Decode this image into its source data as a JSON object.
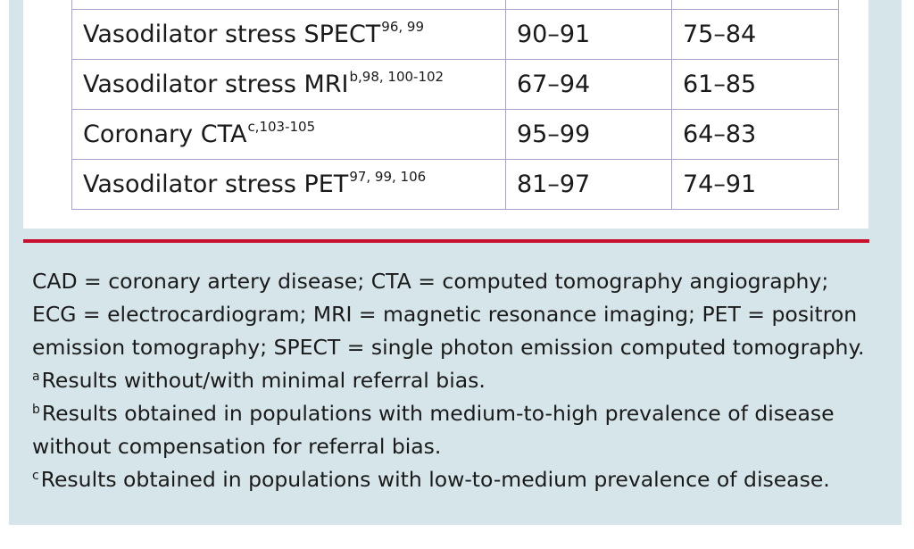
{
  "table": {
    "partial_header_row": [
      "",
      "",
      ""
    ],
    "rows": [
      {
        "test": "Vasodilator stress SPECT",
        "refs": "96, 99",
        "sensitivity": "90–91",
        "specificity": "75–84"
      },
      {
        "test": "Vasodilator stress MRI",
        "refs": "b,98, 100-102",
        "sensitivity": "67–94",
        "specificity": "61–85"
      },
      {
        "test": "Coronary CTA",
        "refs": "c,103-105",
        "sensitivity": "95–99",
        "specificity": "64–83"
      },
      {
        "test": "Vasodilator stress PET",
        "refs": "97, 99, 106",
        "sensitivity": "81–97",
        "specificity": "74–91"
      }
    ]
  },
  "footnotes": {
    "abbreviations": [
      "CAD = coronary artery disease; CTA = computed tomography angiography;",
      "ECG = electrocardiogram; MRI = magnetic resonance imaging; PET = positron",
      "emission tomography; SPECT = single photon emission computed tomography."
    ],
    "a": {
      "marker": "a",
      "text": "Results without/with minimal referral bias."
    },
    "b": {
      "marker": "b",
      "lines": [
        "Results obtained in populations with medium-to-high prevalence of disease",
        "without compensation for referral bias."
      ]
    },
    "c": {
      "marker": "c",
      "text": "Results obtained in populations with low-to-medium prevalence of disease."
    }
  },
  "colors": {
    "panel_background": "#d5e5ea",
    "divider_rule": "#c8102e",
    "table_border": "#a9a1cf"
  }
}
